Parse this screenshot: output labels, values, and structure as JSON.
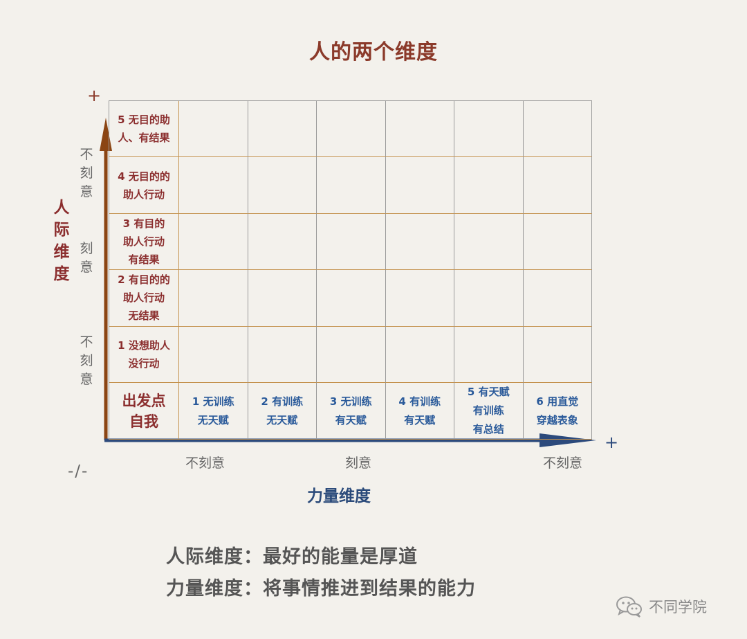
{
  "title": "人的两个维度",
  "y_axis": {
    "title": "人\n际\n维\n度",
    "plus": "+",
    "segments": [
      "不\n刻\n意",
      "刻\n意",
      "不\n刻\n意"
    ]
  },
  "x_axis": {
    "title": "力量维度",
    "plus": "+",
    "segments": [
      "不刻意",
      "刻意",
      "不刻意"
    ]
  },
  "origin_label": "-/-",
  "matrix": {
    "row_headers": [
      "5 无目的助\n人、有结果",
      "4 无目的的\n助人行动",
      "3 有目的\n助人行动\n有结果",
      "2 有目的的\n助人行动\n无结果",
      "1 没想助人\n没行动"
    ],
    "origin_cell": "出发点\n自我",
    "column_headers": [
      "1 无训练\n无天赋",
      "2 有训练\n无天赋",
      "3 无训练\n有天赋",
      "4 有训练\n有天赋",
      "5 有天赋\n有训练\n有总结",
      "6 用直觉\n穿越表象"
    ]
  },
  "definitions": [
    "人际维度：最好的能量是厚道",
    "力量维度：将事情推进到结果的能力"
  ],
  "brand": {
    "icon": "wechat-icon",
    "name": "不同学院"
  },
  "colors": {
    "y_axis": "#8b4513",
    "x_axis": "#2c4a7c",
    "row_text": "#8b2e2e",
    "col_text": "#2a5a9a"
  }
}
